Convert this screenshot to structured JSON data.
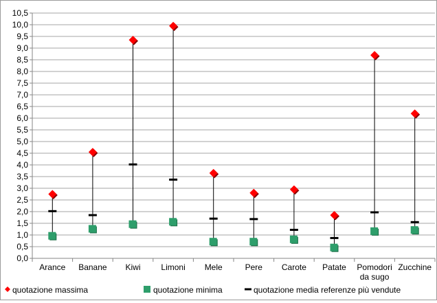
{
  "chart_data": {
    "type": "scatter",
    "categories": [
      "Arance",
      "Banane",
      "Kiwi",
      "Limoni",
      "Mele",
      "Pere",
      "Carote",
      "Patate",
      "Pomodori da sugo",
      "Zucchine"
    ],
    "category_lines": [
      [
        "Arance"
      ],
      [
        "Banane"
      ],
      [
        "Kiwi"
      ],
      [
        "Limoni"
      ],
      [
        "Mele"
      ],
      [
        "Pere"
      ],
      [
        "Carote"
      ],
      [
        "Patate"
      ],
      [
        "Pomodori",
        "da sugo"
      ],
      [
        "Zucchine"
      ]
    ],
    "yticks": [
      "0,0",
      "0,5",
      "1,0",
      "1,5",
      "2,0",
      "2,5",
      "3,0",
      "3,5",
      "4,0",
      "4,5",
      "5,0",
      "5,5",
      "6,0",
      "6,5",
      "7,0",
      "7,5",
      "8,0",
      "8,5",
      "9,0",
      "9,5",
      "10,0",
      "10,5"
    ],
    "ylim": [
      0,
      10.5
    ],
    "ystep": 0.5,
    "grid": true,
    "legend_position": "bottom",
    "series": [
      {
        "name": "quotazione massima",
        "marker": "diamond",
        "color": "#ff0000",
        "values": [
          2.75,
          4.55,
          9.35,
          9.95,
          3.65,
          2.8,
          2.95,
          1.85,
          8.7,
          6.2
        ]
      },
      {
        "name": "quotazione minima",
        "marker": "square",
        "color": "#2e9e6b",
        "values": [
          0.95,
          1.25,
          1.45,
          1.55,
          0.7,
          0.7,
          0.8,
          0.45,
          1.15,
          1.2
        ]
      },
      {
        "name": "quotazione media referenze più vendute",
        "marker": "dash",
        "color": "#000000",
        "values": [
          2.02,
          1.85,
          4.02,
          3.37,
          1.7,
          1.68,
          1.22,
          0.87,
          1.97,
          1.55
        ]
      }
    ]
  }
}
